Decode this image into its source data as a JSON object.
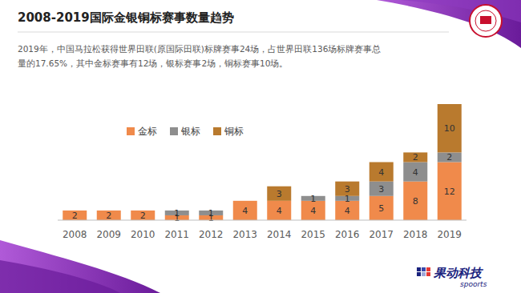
{
  "chart_data": {
    "type": "bar",
    "title": "2008-2019国际金银铜标赛事数量趋势",
    "subtitle": "2019年，中国马拉松获得世界田联(原国际田联)标牌赛事24场，占世界田联136场标牌赛事总量的17.65%，其中金标赛事有12场，银标赛事2场，铜标赛事10场。",
    "categories": [
      "2008",
      "2009",
      "2010",
      "2011",
      "2012",
      "2013",
      "2014",
      "2015",
      "2016",
      "2017",
      "2018",
      "2019"
    ],
    "series": [
      {
        "name": "金标",
        "color": "#f08a4b",
        "values": [
          2,
          2,
          2,
          1,
          1,
          4,
          4,
          4,
          4,
          5,
          8,
          12
        ]
      },
      {
        "name": "银标",
        "color": "#8e8e8e",
        "values": [
          null,
          null,
          null,
          1,
          1,
          null,
          null,
          1,
          1,
          3,
          4,
          2
        ]
      },
      {
        "name": "铜标",
        "color": "#b97a2e",
        "values": [
          null,
          null,
          null,
          null,
          null,
          null,
          3,
          null,
          3,
          4,
          2,
          10
        ]
      }
    ],
    "stacked": true,
    "data_labels": true,
    "legend": "top-left",
    "tick_labels": "x",
    "ylim": [
      0,
      24
    ],
    "grid": false
  },
  "brand": {
    "name": "果动科技",
    "sub": "spoorts"
  }
}
